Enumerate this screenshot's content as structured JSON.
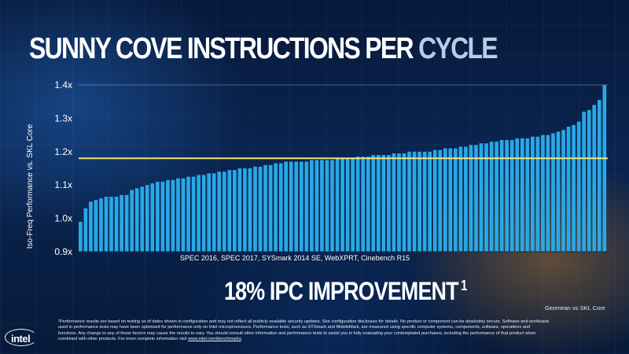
{
  "slide": {
    "title_main": "SUNNY COVE INSTRUCTIONS PER",
    "title_tail": "CYCLE",
    "headline": "18% IPC IMPROVEMENT",
    "headline_footnote": "1",
    "geomean_note": "Geomean vs SKL Core",
    "logo_text": "intel",
    "disclaimer_before_url": "¹Performance results are based on testing as of dates shown in configuration and may not reflect all publicly available security updates. See configuration disclosure for details. No product or component can be absolutely secure. Software and workloads used in performance tests may have been optimized for performance only on Intel microprocessors. Performance tests, such as SYSmark and MobileMark, are measured using specific computer systems, components, software, operations and functions. Any change to any of those factors may cause the results to vary. You should consult other information and performance tests to assist you in fully evaluating your contemplated purchases, including the performance of that product when combined with other products. For more complete information visit ",
    "disclaimer_url": "www.intel.com/benchmarks",
    "disclaimer_after_url": "."
  },
  "colors": {
    "bar": "#29a8e6",
    "geomean_line": "#f2e27a",
    "axis_text": "#ffffff",
    "gridline": "#ffffff"
  },
  "chart_data": {
    "type": "bar",
    "title": "SUNNY COVE INSTRUCTIONS PER CYCLE",
    "xlabel": "SPEC 2016, SPEC 2017, SYSmark 2014 SE, WebXPRT, Cinebench R15",
    "ylabel": "Iso-Freq Performance vs. SKL Core",
    "ylim": [
      0.9,
      1.4
    ],
    "yticks": [
      "0.9x",
      "1.0x",
      "1.1x",
      "1.2x",
      "1.3x",
      "1.4x"
    ],
    "ytick_values": [
      0.9,
      1.0,
      1.1,
      1.2,
      1.3,
      1.4
    ],
    "grid": false,
    "reference_line": {
      "label": "Geomean vs SKL Core",
      "value": 1.18
    },
    "values": [
      0.99,
      1.03,
      1.05,
      1.055,
      1.06,
      1.065,
      1.065,
      1.065,
      1.07,
      1.07,
      1.085,
      1.09,
      1.095,
      1.1,
      1.105,
      1.11,
      1.11,
      1.115,
      1.115,
      1.12,
      1.12,
      1.125,
      1.125,
      1.13,
      1.13,
      1.135,
      1.135,
      1.14,
      1.14,
      1.145,
      1.145,
      1.15,
      1.15,
      1.15,
      1.155,
      1.155,
      1.16,
      1.16,
      1.165,
      1.165,
      1.17,
      1.17,
      1.17,
      1.17,
      1.17,
      1.175,
      1.175,
      1.175,
      1.175,
      1.175,
      1.18,
      1.18,
      1.18,
      1.18,
      1.185,
      1.185,
      1.185,
      1.19,
      1.19,
      1.19,
      1.19,
      1.195,
      1.195,
      1.195,
      1.2,
      1.2,
      1.2,
      1.2,
      1.2,
      1.205,
      1.205,
      1.21,
      1.21,
      1.21,
      1.215,
      1.215,
      1.22,
      1.22,
      1.225,
      1.225,
      1.23,
      1.23,
      1.235,
      1.235,
      1.235,
      1.24,
      1.24,
      1.24,
      1.245,
      1.245,
      1.25,
      1.25,
      1.255,
      1.26,
      1.265,
      1.275,
      1.28,
      1.29,
      1.32,
      1.325,
      1.34,
      1.355,
      1.4
    ]
  }
}
